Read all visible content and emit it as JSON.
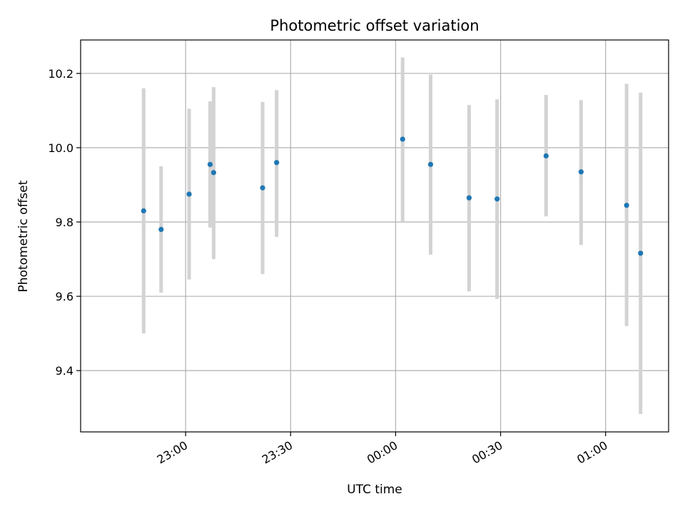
{
  "chart_data": {
    "type": "scatter",
    "title": "Photometric offset variation",
    "xlabel": "UTC time",
    "ylabel": "Photometric offset",
    "xlim": [
      "22:30",
      "01:18"
    ],
    "ylim": [
      9.235,
      10.29
    ],
    "grid": true,
    "x_ticks": [
      "23:00",
      "23:30",
      "00:00",
      "00:30",
      "01:00"
    ],
    "y_ticks": [
      "9.4",
      "9.6",
      "9.8",
      "10.0",
      "10.2"
    ],
    "colors": {
      "point": "#1f77b4",
      "errorbar": "#d3d3d3",
      "grid": "#b0b0b0"
    },
    "points": [
      {
        "x": "22:48",
        "y": 9.83,
        "err_low": 9.5,
        "err_high": 10.16
      },
      {
        "x": "22:53",
        "y": 9.78,
        "err_low": 9.61,
        "err_high": 9.95
      },
      {
        "x": "23:01",
        "y": 9.875,
        "err_low": 9.645,
        "err_high": 10.105
      },
      {
        "x": "23:07",
        "y": 9.955,
        "err_low": 9.785,
        "err_high": 10.125
      },
      {
        "x": "23:08",
        "y": 9.933,
        "err_low": 9.7,
        "err_high": 10.163
      },
      {
        "x": "23:22",
        "y": 9.892,
        "err_low": 9.66,
        "err_high": 10.123
      },
      {
        "x": "23:26",
        "y": 9.96,
        "err_low": 9.76,
        "err_high": 10.155
      },
      {
        "x": "00:02",
        "y": 10.023,
        "err_low": 9.8,
        "err_high": 10.243
      },
      {
        "x": "00:10",
        "y": 9.955,
        "err_low": 9.712,
        "err_high": 10.197
      },
      {
        "x": "00:21",
        "y": 9.865,
        "err_low": 9.613,
        "err_high": 10.115
      },
      {
        "x": "00:29",
        "y": 9.862,
        "err_low": 9.593,
        "err_high": 10.13
      },
      {
        "x": "00:43",
        "y": 9.978,
        "err_low": 9.815,
        "err_high": 10.142
      },
      {
        "x": "00:53",
        "y": 9.935,
        "err_low": 9.738,
        "err_high": 10.128
      },
      {
        "x": "01:06",
        "y": 9.845,
        "err_low": 9.52,
        "err_high": 10.172
      },
      {
        "x": "01:10",
        "y": 9.716,
        "err_low": 9.283,
        "err_high": 10.148
      }
    ]
  }
}
